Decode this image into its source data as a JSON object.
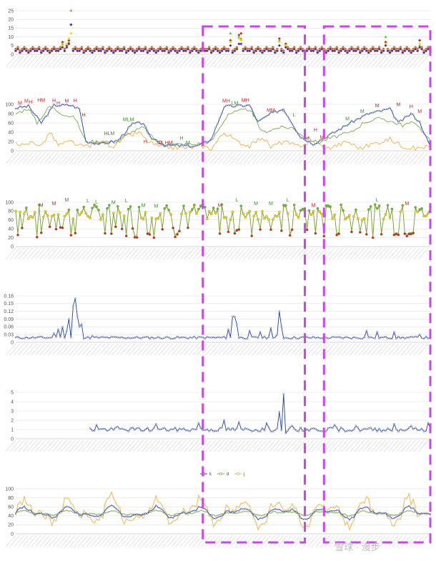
{
  "watermark": "雪球 · 漫步",
  "colors": {
    "k": "#1f3fa6",
    "d": "#6aa33b",
    "j": "#f2a82e",
    "label_high": "#d81e1e",
    "label_mid": "#cc2a2a",
    "label_low": "#3a8f2a",
    "marker_red": "#d62020",
    "marker_green": "#5cc13a",
    "marker_yellow": "#ffd400",
    "marker_purple": "#4c2db8",
    "highlight": "#cc44ee",
    "grid": "#d9d9d9"
  },
  "highlight_boxes": [
    {
      "name": "period-1",
      "from_index": 88,
      "to_index": 136
    },
    {
      "name": "period-2",
      "from_index": 145,
      "to_index": 195
    }
  ],
  "chart_data": [
    {
      "type": "scatter",
      "name": "signal-count-chart",
      "ylim": [
        0,
        25
      ],
      "yticks": [
        0,
        5,
        10,
        15,
        20,
        25
      ],
      "n": 196,
      "marker_series": [
        "red",
        "green",
        "yellow",
        "purple"
      ],
      "baseline_pattern": [
        2,
        3,
        1,
        2,
        3,
        2,
        1,
        2,
        3,
        2
      ],
      "peaks": [
        {
          "i": 26,
          "red": 17,
          "green": 25,
          "yellow": 12,
          "purple": 17
        },
        {
          "i": 25,
          "red": 8,
          "green": 7,
          "yellow": 9,
          "purple": 6
        },
        {
          "i": 24,
          "red": 5,
          "green": 4,
          "yellow": 6,
          "purple": 4
        },
        {
          "i": 22,
          "red": 7,
          "green": 6,
          "yellow": 5,
          "purple": 4
        },
        {
          "i": 101,
          "red": 8,
          "green": 12,
          "yellow": 7,
          "purple": 5
        },
        {
          "i": 105,
          "red": 11,
          "green": 10,
          "yellow": 9,
          "purple": 6
        },
        {
          "i": 106,
          "red": 12,
          "green": 9,
          "yellow": 8,
          "purple": 6
        },
        {
          "i": 124,
          "red": 9,
          "green": 8,
          "yellow": 7,
          "purple": 5
        },
        {
          "i": 127,
          "red": 6,
          "green": 5,
          "yellow": 5,
          "purple": 4
        },
        {
          "i": 174,
          "red": 7,
          "green": 10,
          "yellow": 6,
          "purple": 5
        },
        {
          "i": 190,
          "red": 8,
          "green": 5,
          "yellow": 6,
          "purple": 4
        }
      ]
    },
    {
      "type": "line",
      "name": "kdj-long-chart",
      "ylim": [
        0,
        100
      ],
      "yticks": [
        0,
        20,
        40,
        60,
        80,
        100
      ],
      "n": 196,
      "k_knots": [
        [
          0,
          92
        ],
        [
          6,
          96
        ],
        [
          12,
          60
        ],
        [
          18,
          98
        ],
        [
          26,
          98
        ],
        [
          30,
          90
        ],
        [
          33,
          20
        ],
        [
          40,
          15
        ],
        [
          48,
          22
        ],
        [
          55,
          58
        ],
        [
          60,
          60
        ],
        [
          63,
          30
        ],
        [
          70,
          12
        ],
        [
          85,
          10
        ],
        [
          92,
          25
        ],
        [
          98,
          95
        ],
        [
          110,
          98
        ],
        [
          114,
          62
        ],
        [
          120,
          80
        ],
        [
          126,
          90
        ],
        [
          134,
          30
        ],
        [
          140,
          15
        ],
        [
          150,
          40
        ],
        [
          158,
          62
        ],
        [
          166,
          80
        ],
        [
          176,
          90
        ],
        [
          180,
          60
        ],
        [
          186,
          80
        ],
        [
          190,
          62
        ],
        [
          195,
          8
        ]
      ],
      "d_knots": [
        [
          0,
          80
        ],
        [
          6,
          92
        ],
        [
          10,
          60
        ],
        [
          16,
          96
        ],
        [
          22,
          80
        ],
        [
          28,
          70
        ],
        [
          33,
          20
        ],
        [
          40,
          20
        ],
        [
          48,
          20
        ],
        [
          54,
          40
        ],
        [
          60,
          50
        ],
        [
          64,
          30
        ],
        [
          70,
          14
        ],
        [
          84,
          14
        ],
        [
          92,
          20
        ],
        [
          100,
          80
        ],
        [
          110,
          90
        ],
        [
          116,
          40
        ],
        [
          124,
          50
        ],
        [
          130,
          50
        ],
        [
          136,
          30
        ],
        [
          142,
          18
        ],
        [
          150,
          30
        ],
        [
          158,
          40
        ],
        [
          164,
          62
        ],
        [
          172,
          70
        ],
        [
          182,
          55
        ],
        [
          188,
          62
        ],
        [
          195,
          20
        ]
      ],
      "j_knots": [
        [
          0,
          20
        ],
        [
          4,
          10
        ],
        [
          8,
          20
        ],
        [
          12,
          10
        ],
        [
          16,
          40
        ],
        [
          20,
          12
        ],
        [
          26,
          20
        ],
        [
          30,
          10
        ],
        [
          34,
          10
        ],
        [
          40,
          20
        ],
        [
          46,
          10
        ],
        [
          52,
          30
        ],
        [
          58,
          40
        ],
        [
          62,
          20
        ],
        [
          68,
          8
        ],
        [
          80,
          6
        ],
        [
          88,
          10
        ],
        [
          92,
          5
        ],
        [
          98,
          40
        ],
        [
          104,
          20
        ],
        [
          110,
          10
        ],
        [
          116,
          30
        ],
        [
          120,
          8
        ],
        [
          126,
          20
        ],
        [
          132,
          10
        ],
        [
          140,
          20
        ],
        [
          146,
          5
        ],
        [
          150,
          10
        ],
        [
          156,
          20
        ],
        [
          162,
          5
        ],
        [
          168,
          15
        ],
        [
          176,
          25
        ],
        [
          182,
          10
        ],
        [
          188,
          5
        ],
        [
          195,
          10
        ]
      ],
      "labels": [
        {
          "i": 2,
          "v": 98,
          "text": "M",
          "tone": "high"
        },
        {
          "i": 5,
          "v": 102,
          "text": "M",
          "tone": "high"
        },
        {
          "i": 7,
          "v": 100,
          "text": "H",
          "tone": "high"
        },
        {
          "i": 12,
          "v": 104,
          "text": "HM",
          "tone": "high"
        },
        {
          "i": 18,
          "v": 103,
          "text": "H",
          "tone": "high"
        },
        {
          "i": 20,
          "v": 98,
          "text": "H",
          "tone": "high"
        },
        {
          "i": 24,
          "v": 102,
          "text": "M",
          "tone": "high"
        },
        {
          "i": 28,
          "v": 103,
          "text": "H",
          "tone": "high"
        },
        {
          "i": 32,
          "v": 72,
          "text": "H",
          "tone": "high"
        },
        {
          "i": 44,
          "v": 32,
          "text": "HLM",
          "tone": "low"
        },
        {
          "i": 53,
          "v": 62,
          "text": "MLM",
          "tone": "low"
        },
        {
          "i": 61,
          "v": 15,
          "text": "H",
          "tone": "high"
        },
        {
          "i": 68,
          "v": 12,
          "text": "M",
          "tone": "high"
        },
        {
          "i": 72,
          "v": 12,
          "text": "HM",
          "tone": "high"
        },
        {
          "i": 78,
          "v": 22,
          "text": "H",
          "tone": "low"
        },
        {
          "i": 81,
          "v": 12,
          "text": "M",
          "tone": "low"
        },
        {
          "i": 99,
          "v": 102,
          "text": "MH",
          "tone": "high"
        },
        {
          "i": 103,
          "v": 98,
          "text": "LM",
          "tone": "low"
        },
        {
          "i": 108,
          "v": 104,
          "text": "MH",
          "tone": "high"
        },
        {
          "i": 112,
          "v": 72,
          "text": "L",
          "tone": "low"
        },
        {
          "i": 120,
          "v": 82,
          "text": "MM",
          "tone": "high"
        },
        {
          "i": 126,
          "v": 82,
          "text": "L",
          "tone": "low"
        },
        {
          "i": 131,
          "v": 72,
          "text": "L",
          "tone": "low"
        },
        {
          "i": 137,
          "v": 22,
          "text": "H",
          "tone": "high"
        },
        {
          "i": 141,
          "v": 40,
          "text": "H",
          "tone": "high"
        },
        {
          "i": 144,
          "v": 24,
          "text": "M",
          "tone": "high"
        },
        {
          "i": 156,
          "v": 64,
          "text": "M",
          "tone": "low"
        },
        {
          "i": 163,
          "v": 80,
          "text": "M",
          "tone": "low"
        },
        {
          "i": 170,
          "v": 92,
          "text": "M",
          "tone": "high"
        },
        {
          "i": 180,
          "v": 95,
          "text": "M",
          "tone": "high"
        },
        {
          "i": 186,
          "v": 90,
          "text": "H",
          "tone": "high"
        },
        {
          "i": 190,
          "v": 80,
          "text": "M",
          "tone": "high"
        }
      ]
    },
    {
      "type": "line",
      "name": "kdj-short-chart",
      "ylim": [
        0,
        100
      ],
      "yticks": [
        0,
        20,
        40,
        60,
        80,
        100
      ],
      "n": 196,
      "seed": 7,
      "labels": [
        {
          "i": 12,
          "v": 88,
          "text": "M",
          "tone": "high"
        },
        {
          "i": 18,
          "v": 92,
          "text": "M",
          "tone": "high"
        },
        {
          "i": 24,
          "v": 100,
          "text": "M",
          "tone": "low"
        },
        {
          "i": 34,
          "v": 98,
          "text": "L",
          "tone": "low"
        },
        {
          "i": 38,
          "v": 96,
          "text": "L",
          "tone": "low"
        },
        {
          "i": 46,
          "v": 94,
          "text": "M",
          "tone": "low"
        },
        {
          "i": 52,
          "v": 98,
          "text": "L",
          "tone": "low"
        },
        {
          "i": 60,
          "v": 88,
          "text": "M",
          "tone": "low"
        },
        {
          "i": 66,
          "v": 86,
          "text": "M",
          "tone": "low"
        },
        {
          "i": 96,
          "v": 88,
          "text": "M",
          "tone": "high"
        },
        {
          "i": 104,
          "v": 100,
          "text": "L",
          "tone": "low"
        },
        {
          "i": 113,
          "v": 92,
          "text": "M",
          "tone": "low"
        },
        {
          "i": 120,
          "v": 92,
          "text": "M",
          "tone": "low"
        },
        {
          "i": 128,
          "v": 100,
          "text": "L",
          "tone": "low"
        },
        {
          "i": 140,
          "v": 88,
          "text": "M",
          "tone": "high"
        },
        {
          "i": 170,
          "v": 100,
          "text": "L",
          "tone": "low"
        },
        {
          "i": 184,
          "v": 92,
          "text": "M",
          "tone": "high"
        }
      ]
    },
    {
      "type": "line",
      "name": "ratio-chart",
      "ylim": [
        0,
        0.18
      ],
      "yticks": [
        0,
        0.03,
        0.06,
        0.09,
        0.12,
        0.15,
        0.18
      ],
      "ytick_labels": [
        "0",
        "0.03",
        "0.06",
        "0.09",
        "0.12",
        "0.15",
        "0.18"
      ],
      "n": 196,
      "base": 0.018,
      "spikes": [
        [
          18,
          0.035
        ],
        [
          20,
          0.05
        ],
        [
          22,
          0.06
        ],
        [
          24,
          0.045
        ],
        [
          25,
          0.09
        ],
        [
          27,
          0.14
        ],
        [
          28,
          0.17
        ],
        [
          29,
          0.1
        ],
        [
          30,
          0.06
        ],
        [
          31,
          0.07
        ],
        [
          36,
          0.025
        ],
        [
          100,
          0.05
        ],
        [
          102,
          0.1
        ],
        [
          103,
          0.1
        ],
        [
          104,
          0.07
        ],
        [
          110,
          0.045
        ],
        [
          115,
          0.04
        ],
        [
          120,
          0.055
        ],
        [
          123,
          0.03
        ],
        [
          124,
          0.12
        ],
        [
          125,
          0.06
        ],
        [
          150,
          0.02
        ],
        [
          165,
          0.045
        ],
        [
          170,
          0.04
        ],
        [
          178,
          0.04
        ],
        [
          190,
          0.03
        ]
      ]
    },
    {
      "type": "line",
      "name": "value-chart",
      "ylim": [
        0,
        5
      ],
      "yticks": [
        0,
        1,
        2,
        3,
        4,
        5
      ],
      "n": 196,
      "start_index": 35,
      "base": 1.0,
      "spikes": [
        [
          38,
          1.5
        ],
        [
          48,
          1.3
        ],
        [
          66,
          1.6
        ],
        [
          86,
          1.7
        ],
        [
          98,
          2.0
        ],
        [
          105,
          1.8
        ],
        [
          118,
          1.7
        ],
        [
          124,
          2.9
        ],
        [
          126,
          4.8
        ],
        [
          127,
          0.6
        ],
        [
          130,
          1.4
        ],
        [
          150,
          1.5
        ],
        [
          160,
          1.4
        ],
        [
          178,
          1.6
        ],
        [
          186,
          1.4
        ],
        [
          194,
          1.7
        ]
      ]
    },
    {
      "type": "line",
      "name": "kdj-legend-chart",
      "ylim": [
        0,
        100
      ],
      "yticks": [
        0,
        20,
        40,
        60,
        80,
        100
      ],
      "n": 196,
      "legend": [
        "k",
        "d",
        "j"
      ],
      "legend_position": "top-center"
    }
  ]
}
